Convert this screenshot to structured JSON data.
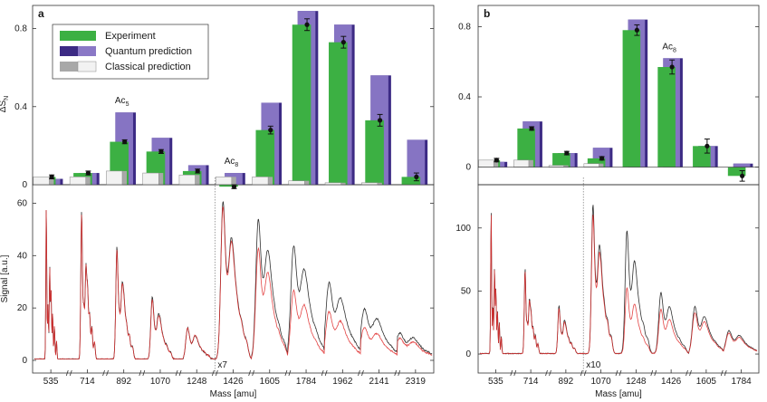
{
  "chart_data": [
    {
      "panel_label": "a",
      "type": "bar",
      "ylabel": "ΔS",
      "ylabel_sub": "N",
      "ylim": [
        0,
        0.9
      ],
      "yticks": [
        0,
        0.4,
        0.8
      ],
      "categories": [
        "535",
        "714",
        "892",
        "1070",
        "1248",
        "1426",
        "1605",
        "1784",
        "1962",
        "2141",
        "2319"
      ],
      "series": [
        {
          "name": "Experiment",
          "values": [
            0.04,
            0.06,
            0.22,
            0.17,
            0.07,
            -0.01,
            0.28,
            0.82,
            0.73,
            0.33,
            0.04
          ],
          "errors": [
            0.01,
            0.01,
            0.01,
            0.01,
            0.01,
            0.01,
            0.02,
            0.03,
            0.03,
            0.03,
            0.02
          ]
        },
        {
          "name": "Quantum prediction",
          "values": [
            0.03,
            0.06,
            0.37,
            0.24,
            0.1,
            0.06,
            0.42,
            0.89,
            0.82,
            0.56,
            0.23
          ]
        },
        {
          "name": "Classical prediction",
          "values": [
            0.04,
            0.04,
            0.07,
            0.06,
            0.05,
            0.04,
            0.04,
            0.02,
            0.01,
            0.01,
            0.0
          ]
        }
      ],
      "annotations": [
        {
          "text": "Ac",
          "sub": "5",
          "category": "892"
        },
        {
          "text": "Ac",
          "sub": "8",
          "category": "1426"
        }
      ],
      "legend": {
        "placement": "top-left",
        "entries": [
          "Experiment",
          "Quantum prediction",
          "Classical prediction"
        ]
      },
      "colors": {
        "experiment": "#3cb043",
        "quantum": "#8a78c6",
        "quantum_dark": "#3c2a84",
        "classical": "#a8a8a8",
        "classical_light": "#f2f2f2"
      }
    },
    {
      "panel_label": "b",
      "type": "bar",
      "ylim": [
        -0.1,
        0.9
      ],
      "yticks": [
        0,
        0.4,
        0.8
      ],
      "categories": [
        "535",
        "714",
        "892",
        "1070",
        "1248",
        "1426",
        "1605",
        "1784"
      ],
      "series": [
        {
          "name": "Experiment",
          "values": [
            0.04,
            0.22,
            0.08,
            0.05,
            0.78,
            0.57,
            0.12,
            -0.05
          ],
          "errors": [
            0.01,
            0.01,
            0.01,
            0.01,
            0.03,
            0.04,
            0.04,
            0.03
          ]
        },
        {
          "name": "Quantum prediction",
          "values": [
            0.03,
            0.26,
            0.08,
            0.11,
            0.84,
            0.62,
            0.12,
            0.02
          ]
        },
        {
          "name": "Classical prediction",
          "values": [
            0.04,
            0.04,
            0.01,
            0.02,
            0.0,
            0.0,
            0.0,
            0.0
          ]
        }
      ],
      "annotations": [
        {
          "text": "Ac",
          "sub": "8",
          "category": "1426"
        }
      ]
    },
    {
      "type": "line",
      "xlabel": "Mass [amu]",
      "ylabel": "Signal [a.u.]",
      "ylim": [
        0,
        65
      ],
      "yticks": [
        0,
        20,
        40,
        60
      ],
      "categories": [
        "535",
        "714",
        "892",
        "1070",
        "1248",
        "1426",
        "1605",
        "1784",
        "1962",
        "2141",
        "2319"
      ],
      "scale_note": "x7",
      "scale_note_after": "1248",
      "series": [
        {
          "name": "",
          "color": "#1a1a1a",
          "peak_heights": [
            59,
            57,
            43,
            24,
            12,
            60,
            53,
            43,
            29,
            19,
            10
          ]
        },
        {
          "name": "",
          "color": "#e03030",
          "peak_heights": [
            59,
            56,
            42,
            23,
            12,
            58,
            42,
            26,
            18,
            12,
            8
          ]
        }
      ]
    },
    {
      "type": "line",
      "xlabel": "Mass [amu]",
      "ylim": [
        -5,
        130
      ],
      "yticks": [
        0,
        50,
        100
      ],
      "categories": [
        "535",
        "714",
        "892",
        "1070",
        "1248",
        "1426",
        "1605",
        "1784"
      ],
      "scale_note": "x10",
      "scale_note_after": "892",
      "series": [
        {
          "name": "",
          "color": "#1a1a1a",
          "peak_heights": [
            115,
            68,
            38,
            118,
            97,
            48,
            37,
            18
          ]
        },
        {
          "name": "",
          "color": "#e03030",
          "peak_heights": [
            113,
            66,
            36,
            110,
            52,
            35,
            32,
            16
          ]
        }
      ]
    }
  ]
}
